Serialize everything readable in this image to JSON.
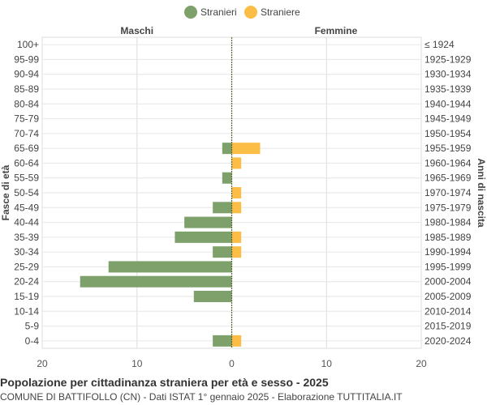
{
  "chart_data": {
    "type": "bar",
    "orientation": "horizontal-pyramid",
    "legend": {
      "position": "top-center",
      "items": [
        {
          "label": "Stranieri",
          "color": "#7ea06a"
        },
        {
          "label": "Straniere",
          "color": "#fbbd45"
        }
      ]
    },
    "left_header": "Maschi",
    "right_header": "Femmine",
    "ylabel_left": "Fasce di età",
    "ylabel_right": "Anni di nascita",
    "xlim": [
      -20,
      20
    ],
    "x_ticks": [
      {
        "value": -20,
        "label": "20"
      },
      {
        "value": -10,
        "label": "10"
      },
      {
        "value": 0,
        "label": "0"
      },
      {
        "value": 10,
        "label": "10"
      },
      {
        "value": 20,
        "label": "20"
      }
    ],
    "grid": true,
    "categories": [
      "100+",
      "95-99",
      "90-94",
      "85-89",
      "80-84",
      "75-79",
      "70-74",
      "65-69",
      "60-64",
      "55-59",
      "50-54",
      "45-49",
      "40-44",
      "35-39",
      "30-34",
      "25-29",
      "20-24",
      "15-19",
      "10-14",
      "5-9",
      "0-4"
    ],
    "birth_years": [
      "≤ 1924",
      "1925-1929",
      "1930-1934",
      "1935-1939",
      "1940-1944",
      "1945-1949",
      "1950-1954",
      "1955-1959",
      "1960-1964",
      "1965-1969",
      "1970-1974",
      "1975-1979",
      "1980-1984",
      "1985-1989",
      "1990-1994",
      "1995-1999",
      "2000-2004",
      "2005-2009",
      "2010-2014",
      "2015-2019",
      "2020-2024"
    ],
    "series": [
      {
        "name": "Stranieri",
        "color": "#7ea06a",
        "values": [
          0,
          0,
          0,
          0,
          0,
          0,
          0,
          1,
          0,
          1,
          0,
          2,
          5,
          6,
          2,
          13,
          16,
          4,
          0,
          0,
          2
        ]
      },
      {
        "name": "Straniere",
        "color": "#fbbd45",
        "values": [
          0,
          0,
          0,
          0,
          0,
          0,
          0,
          3,
          1,
          0,
          1,
          1,
          0,
          1,
          1,
          0,
          0,
          0,
          0,
          0,
          1
        ]
      }
    ]
  },
  "caption": {
    "title": "Popolazione per cittadinanza straniera per età e sesso - 2025",
    "subtitle": "COMUNE DI BATTIFOLLO (CN) - Dati ISTAT 1° gennaio 2025 - Elaborazione TUTTITALIA.IT"
  }
}
